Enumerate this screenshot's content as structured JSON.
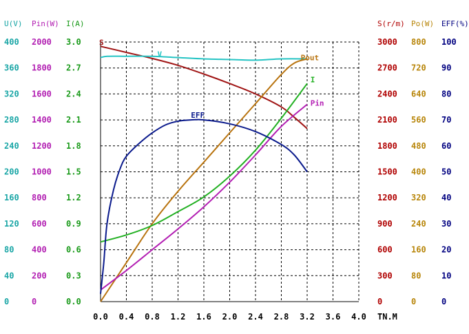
{
  "chart_data": {
    "type": "line",
    "xlabel": "TN.M",
    "x_ticks": [
      "0.0",
      "0.4",
      "0.8",
      "1.2",
      "1.6",
      "2.0",
      "2.4",
      "2.8",
      "3.2",
      "3.6",
      "4.0"
    ],
    "xlim": [
      0,
      4.0
    ],
    "grid": true,
    "left_axes": [
      {
        "key": "U",
        "title": "U(V)",
        "color": "#1aa6a6",
        "ticks": [
          "0",
          "40",
          "80",
          "120",
          "160",
          "200",
          "240",
          "280",
          "320",
          "360",
          "400"
        ]
      },
      {
        "key": "Pin",
        "title": "Pin(W)",
        "color": "#b21fb2",
        "ticks": [
          "0",
          "200",
          "400",
          "600",
          "800",
          "1000",
          "1200",
          "1400",
          "1600",
          "1800",
          "2000"
        ]
      },
      {
        "key": "I",
        "title": "I(A)",
        "color": "#1a9a1a",
        "ticks": [
          "0.0",
          "0.3",
          "0.6",
          "0.9",
          "1.2",
          "1.5",
          "1.8",
          "2.1",
          "2.4",
          "2.7",
          "3.0"
        ]
      }
    ],
    "right_axes": [
      {
        "key": "S",
        "title": "S(r/m)",
        "color": "#b00000",
        "ticks": [
          "0",
          "300",
          "600",
          "900",
          "1200",
          "1500",
          "1800",
          "2100",
          "2400",
          "2700",
          "3000"
        ]
      },
      {
        "key": "Po",
        "title": "Po(W)",
        "color": "#b8860b",
        "ticks": [
          "0",
          "80",
          "160",
          "240",
          "320",
          "400",
          "480",
          "560",
          "640",
          "720",
          "800"
        ]
      },
      {
        "key": "EFF",
        "title": "EFF(%)",
        "color": "#000080",
        "ticks": [
          "0",
          "10",
          "20",
          "30",
          "40",
          "50",
          "60",
          "70",
          "80",
          "90",
          "100"
        ]
      }
    ],
    "series": [
      {
        "name": "S",
        "label": "S",
        "color": "#a01414",
        "axis": "S",
        "ymax": 3000,
        "x": [
          0.0,
          0.4,
          0.8,
          1.2,
          1.6,
          2.0,
          2.4,
          2.8,
          3.0,
          3.2
        ],
        "y": [
          2950,
          2880,
          2810,
          2730,
          2630,
          2520,
          2400,
          2250,
          2130,
          2000
        ]
      },
      {
        "name": "U",
        "label": "V",
        "color": "#26c4c4",
        "axis": "U",
        "ymax": 400,
        "x": [
          0.0,
          0.1,
          0.4,
          0.8,
          1.2,
          1.6,
          2.0,
          2.4,
          2.8,
          3.2
        ],
        "y": [
          376,
          378,
          378,
          378,
          376,
          374,
          373,
          372,
          374,
          374
        ]
      },
      {
        "name": "Pout",
        "label": "Pout",
        "color": "#b8730e",
        "axis": "Po",
        "ymax": 800,
        "x": [
          0.0,
          0.4,
          0.8,
          1.2,
          1.6,
          2.0,
          2.4,
          2.8,
          3.0,
          3.2
        ],
        "y": [
          0,
          120,
          240,
          340,
          430,
          520,
          610,
          700,
          735,
          748
        ]
      },
      {
        "name": "I",
        "label": "I",
        "color": "#22b022",
        "axis": "I",
        "ymax": 3.0,
        "x": [
          0.0,
          0.4,
          0.8,
          1.2,
          1.6,
          2.0,
          2.4,
          2.8,
          3.2
        ],
        "y": [
          0.69,
          0.77,
          0.88,
          1.04,
          1.21,
          1.45,
          1.75,
          2.12,
          2.52
        ]
      },
      {
        "name": "Pin",
        "label": "Pin",
        "color": "#b31fb3",
        "axis": "Pin",
        "ymax": 2000,
        "x": [
          0.0,
          0.4,
          0.8,
          1.2,
          1.6,
          2.0,
          2.4,
          2.8,
          3.2
        ],
        "y": [
          90,
          240,
          400,
          560,
          730,
          920,
          1130,
          1350,
          1520
        ]
      },
      {
        "name": "EFF",
        "label": "EFF",
        "color": "#0a1a8c",
        "axis": "EFF",
        "ymax": 100,
        "x": [
          0.0,
          0.05,
          0.1,
          0.2,
          0.3,
          0.4,
          0.6,
          0.8,
          1.0,
          1.2,
          1.4,
          1.6,
          2.0,
          2.4,
          2.8,
          3.0,
          3.2
        ],
        "y": [
          3,
          15,
          30,
          43,
          51,
          56,
          61,
          65,
          68,
          69.5,
          70,
          70,
          68.5,
          65.5,
          60.5,
          56.5,
          50
        ]
      }
    ]
  }
}
